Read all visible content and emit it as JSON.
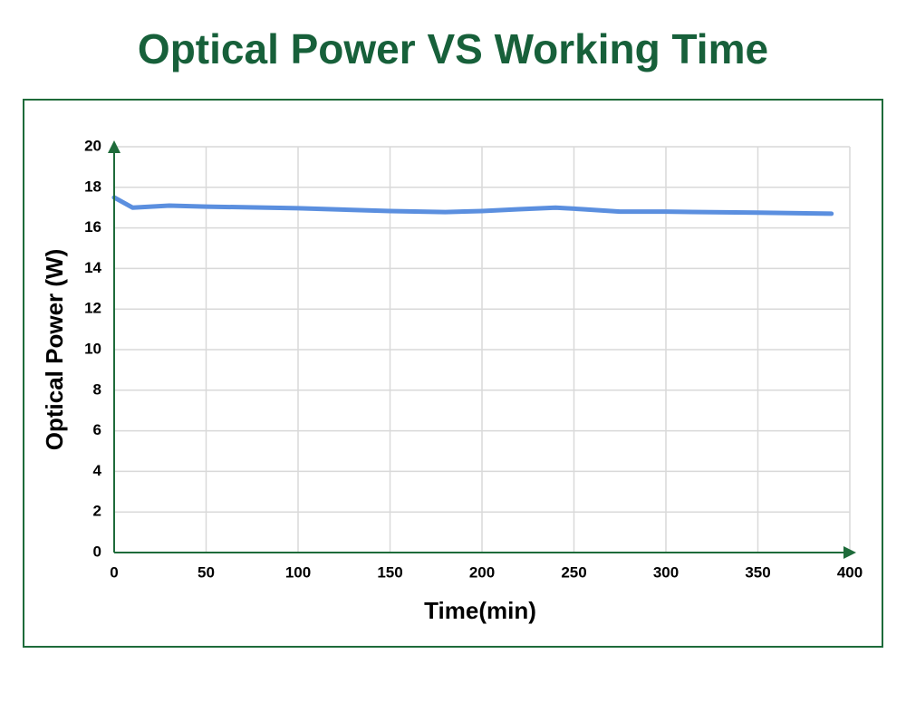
{
  "chart_data": {
    "type": "line",
    "title": "Optical Power VS Working Time",
    "xlabel": "Time(min)",
    "ylabel": "Optical Power (W)",
    "x": [
      0,
      10,
      30,
      50,
      100,
      150,
      180,
      200,
      220,
      240,
      255,
      275,
      300,
      350,
      390
    ],
    "values": [
      17.5,
      17.0,
      17.1,
      17.05,
      16.97,
      16.83,
      16.78,
      16.83,
      16.92,
      17.0,
      16.92,
      16.8,
      16.8,
      16.75,
      16.7
    ],
    "color": "#5b8fdf",
    "xlim": [
      0,
      400
    ],
    "xticks": [
      0,
      50,
      100,
      150,
      200,
      250,
      300,
      350,
      400
    ],
    "ylim": [
      0,
      20
    ],
    "yticks": [
      0,
      2,
      4,
      6,
      8,
      10,
      12,
      14,
      16,
      18,
      20
    ],
    "grid": true
  }
}
